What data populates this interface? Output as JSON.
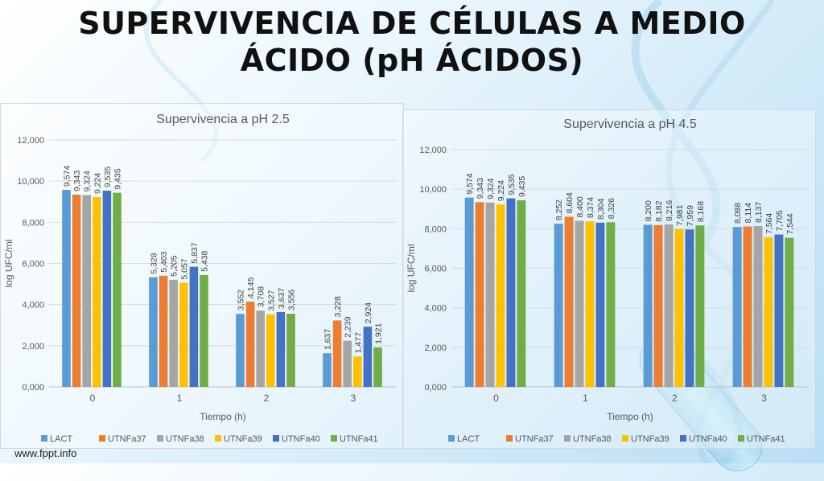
{
  "slide": {
    "title_line1": "SUPERVIVENCIA DE CÉLULAS A MEDIO",
    "title_line2": "ÁCIDO (pH ÁCIDOS)",
    "footer": "www.fppt.info"
  },
  "colors": {
    "LACT": "#5B9BD5",
    "UTNFa37": "#ED7D31",
    "UTNFa38": "#A5A5A5",
    "UTNFa39": "#FFC000",
    "UTNFa40": "#4472C4",
    "UTNFa41": "#70AD47",
    "axis_text": "#595959",
    "grid": "#d9d9d9"
  },
  "chart_data": [
    {
      "type": "bar",
      "title": "Supervivencia a pH 2.5",
      "xlabel": "Tiempo (h)",
      "ylabel": "log UFC/ml",
      "categories": [
        "0",
        "1",
        "2",
        "3"
      ],
      "ylim": [
        0,
        12000
      ],
      "yticks": [
        "0,000",
        "2,000",
        "4,000",
        "6,000",
        "8,000",
        "10,000",
        "12,000"
      ],
      "legend_position": "bottom",
      "series": [
        {
          "name": "LACT",
          "values": [
            9574,
            5328,
            3552,
            1637
          ],
          "labels": [
            "9,574",
            "5,328",
            "3,552",
            "1,637"
          ]
        },
        {
          "name": "UTNFa37",
          "values": [
            9343,
            5403,
            4145,
            3228
          ],
          "labels": [
            "9,343",
            "5,403",
            "4,145",
            "3,228"
          ]
        },
        {
          "name": "UTNFa38",
          "values": [
            9324,
            5205,
            3708,
            2239
          ],
          "labels": [
            "9,324",
            "5,205",
            "3,708",
            "2,239"
          ]
        },
        {
          "name": "UTNFa39",
          "values": [
            9224,
            5057,
            3527,
            1477
          ],
          "labels": [
            "9,224",
            "5,057",
            "3,527",
            "1,477"
          ]
        },
        {
          "name": "UTNFa40",
          "values": [
            9535,
            5837,
            3637,
            2924
          ],
          "labels": [
            "9,535",
            "5,837",
            "3,637",
            "2,924"
          ]
        },
        {
          "name": "UTNFa41",
          "values": [
            9435,
            5438,
            3556,
            1921
          ],
          "labels": [
            "9,435",
            "5,438",
            "3,556",
            "1,921"
          ]
        }
      ]
    },
    {
      "type": "bar",
      "title": "Supervivencia a pH 4.5",
      "xlabel": "Tiempo (h)",
      "ylabel": "log UFC/ml",
      "categories": [
        "0",
        "1",
        "2",
        "3"
      ],
      "ylim": [
        0,
        12000
      ],
      "yticks": [
        "0,000",
        "2,000",
        "4,000",
        "6,000",
        "8,000",
        "10,000",
        "12,000"
      ],
      "legend_position": "bottom",
      "series": [
        {
          "name": "LACT",
          "values": [
            9574,
            8252,
            8200,
            8088
          ],
          "labels": [
            "9,574",
            "8,252",
            "8,200",
            "8,088"
          ]
        },
        {
          "name": "UTNFa37",
          "values": [
            9343,
            8604,
            8182,
            8114
          ],
          "labels": [
            "9,343",
            "8,604",
            "8,182",
            "8,114"
          ]
        },
        {
          "name": "UTNFa38",
          "values": [
            9324,
            8400,
            8216,
            8137
          ],
          "labels": [
            "9,324",
            "8,400",
            "8,216",
            "8,137"
          ]
        },
        {
          "name": "UTNFa39",
          "values": [
            9224,
            8374,
            7981,
            7564
          ],
          "labels": [
            "9,224",
            "8,374",
            "7,981",
            "7,564"
          ]
        },
        {
          "name": "UTNFa40",
          "values": [
            9535,
            8304,
            7959,
            7705
          ],
          "labels": [
            "9,535",
            "8,304",
            "7,959",
            "7,705"
          ]
        },
        {
          "name": "UTNFa41",
          "values": [
            9435,
            8326,
            8168,
            7544
          ],
          "labels": [
            "9,435",
            "8,326",
            "8,168",
            "7,544"
          ]
        }
      ]
    }
  ]
}
